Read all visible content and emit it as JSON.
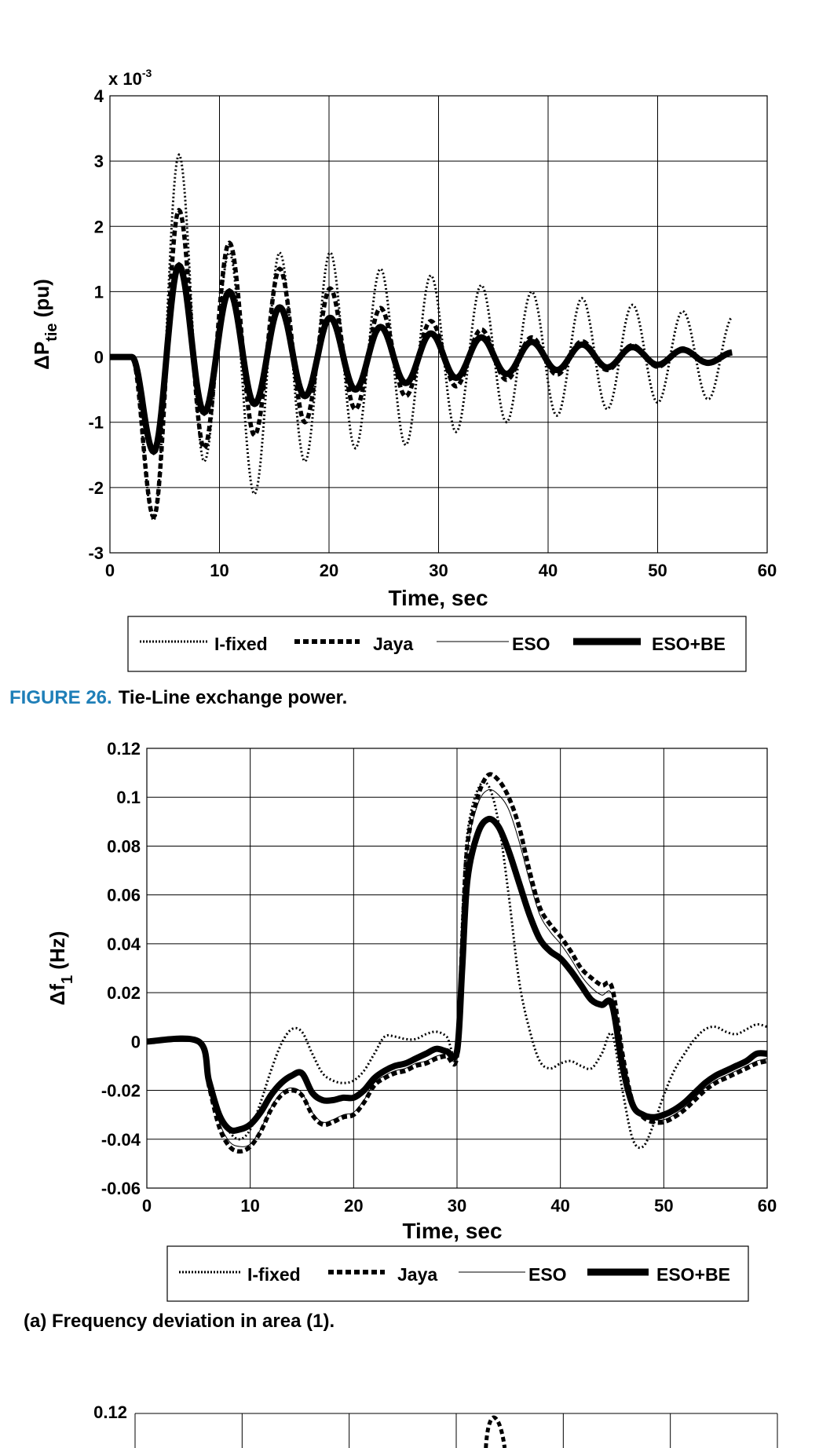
{
  "captions": {
    "fig26_label": "FIGURE 26.",
    "fig26_text": "Tie-Line exchange power.",
    "sub_a": "(a) Frequency deviation in area (1)."
  },
  "legend": {
    "entries": [
      "I-fixed",
      "Jaya",
      "ESO",
      "ESO+BE"
    ]
  },
  "colors": {
    "caption_accent": "#1f7fb8",
    "lines": "#000000"
  },
  "chart_data": [
    {
      "type": "line",
      "title": "",
      "xlabel": "Time, sec",
      "ylabel": "ΔP",
      "ylabel_sub": "tie",
      "ylabel_unit": " (pu)",
      "exponent_label": "x 10",
      "exponent_power": "-3",
      "xlim": [
        0,
        60
      ],
      "ylim": [
        -3,
        4
      ],
      "x_ticks": [
        0,
        10,
        20,
        30,
        40,
        50,
        60
      ],
      "y_ticks": [
        -3,
        -2,
        -1,
        0,
        1,
        2,
        3,
        4
      ],
      "grid": true,
      "legend_position": "below",
      "oscillation_period_s": 4.6,
      "series": [
        {
          "name": "I-fixed",
          "style": "dotted",
          "onset": 2.0,
          "first_min": [
            4.0,
            -2.5
          ],
          "peaks": [
            3.1,
            -1.6,
            1.6,
            -2.1,
            1.6,
            -1.6,
            1.6,
            -1.4,
            1.35,
            -1.35,
            1.25,
            -1.15,
            1.1,
            -1.0,
            1.0,
            -0.9,
            0.9,
            -0.8,
            0.8,
            -0.7,
            0.7,
            -0.65,
            0.62
          ]
        },
        {
          "name": "Jaya",
          "style": "dashed",
          "onset": 2.0,
          "first_min": [
            4.0,
            -2.45
          ],
          "peaks": [
            2.25,
            -1.4,
            1.75,
            -1.2,
            1.35,
            -1.0,
            1.05,
            -0.8,
            0.75,
            -0.6,
            0.55,
            -0.45,
            0.42,
            -0.35,
            0.3,
            -0.27,
            0.24,
            -0.2,
            0.18,
            -0.15,
            0.13,
            -0.1,
            0.08
          ]
        },
        {
          "name": "ESO",
          "style": "thin",
          "onset": 2.0,
          "first_min": [
            4.0,
            -1.5
          ],
          "peaks": [
            1.45,
            -0.9,
            1.05,
            -0.75,
            0.8,
            -0.62,
            0.62,
            -0.5,
            0.48,
            -0.42,
            0.38,
            -0.33,
            0.3,
            -0.26,
            0.24,
            -0.21,
            0.2,
            -0.17,
            0.16,
            -0.13,
            0.12,
            -0.1,
            0.08
          ]
        },
        {
          "name": "ESO+BE",
          "style": "thick",
          "onset": 2.0,
          "first_min": [
            4.0,
            -1.45
          ],
          "peaks": [
            1.4,
            -0.85,
            1.0,
            -0.72,
            0.76,
            -0.6,
            0.6,
            -0.5,
            0.46,
            -0.4,
            0.36,
            -0.32,
            0.3,
            -0.26,
            0.23,
            -0.2,
            0.19,
            -0.16,
            0.15,
            -0.12,
            0.11,
            -0.09,
            0.07
          ]
        }
      ]
    },
    {
      "type": "line",
      "title": "",
      "xlabel": "Time, sec",
      "ylabel": "Δf",
      "ylabel_sub": "1",
      "ylabel_unit": " (Hz)",
      "xlim": [
        0,
        60
      ],
      "ylim": [
        -0.06,
        0.12
      ],
      "x_ticks": [
        0,
        10,
        20,
        30,
        40,
        50,
        60
      ],
      "y_ticks": [
        -0.06,
        -0.04,
        -0.02,
        0,
        0.02,
        0.04,
        0.06,
        0.08,
        0.1,
        0.12
      ],
      "y_tick_labels": [
        "-0.06",
        "-0.04",
        "-0.02",
        "0",
        "0.02",
        "0.04",
        "0.06",
        "0.08",
        "0.1",
        "0.12"
      ],
      "grid": true,
      "legend_position": "below",
      "series": [
        {
          "name": "I-fixed",
          "style": "dotted",
          "x": [
            0,
            5,
            6,
            7,
            8,
            9,
            10,
            11,
            12,
            13,
            14,
            15,
            16,
            17,
            18,
            19,
            20,
            21,
            22,
            23,
            24,
            25,
            26,
            27,
            28,
            29,
            30,
            30.5,
            31,
            32,
            33,
            34,
            35,
            36,
            37,
            38,
            39,
            40,
            41,
            42,
            43,
            44,
            45,
            46,
            47,
            48,
            49,
            50,
            51,
            52,
            53,
            54,
            55,
            56,
            57,
            58,
            59,
            60
          ],
          "y": [
            0,
            0,
            -0.015,
            -0.028,
            -0.037,
            -0.04,
            -0.036,
            -0.025,
            -0.012,
            -0.001,
            0.005,
            0.004,
            -0.005,
            -0.013,
            -0.016,
            -0.017,
            -0.016,
            -0.012,
            -0.005,
            0.002,
            0.002,
            0.001,
            0.001,
            0.003,
            0.004,
            0.002,
            -0.004,
            0.05,
            0.085,
            0.103,
            0.105,
            0.09,
            0.06,
            0.025,
            0.005,
            -0.008,
            -0.011,
            -0.009,
            -0.008,
            -0.01,
            -0.011,
            -0.005,
            0.003,
            -0.02,
            -0.04,
            -0.043,
            -0.034,
            -0.022,
            -0.012,
            -0.005,
            0.001,
            0.005,
            0.006,
            0.004,
            0.003,
            0.005,
            0.007,
            0.006
          ]
        },
        {
          "name": "Jaya",
          "style": "dashed",
          "x": [
            0,
            5,
            6,
            7,
            8,
            9,
            10,
            11,
            12,
            13,
            14,
            15,
            16,
            17,
            18,
            19,
            20,
            21,
            22,
            23,
            24,
            25,
            26,
            27,
            28,
            29,
            30,
            30.5,
            31,
            32,
            33,
            34,
            35,
            36,
            37,
            38,
            39,
            40,
            41,
            42,
            43,
            44,
            45,
            46,
            47,
            48,
            49,
            50,
            51,
            52,
            53,
            54,
            55,
            56,
            57,
            58,
            59,
            60
          ],
          "y": [
            0,
            0,
            -0.018,
            -0.035,
            -0.043,
            -0.045,
            -0.043,
            -0.037,
            -0.028,
            -0.022,
            -0.02,
            -0.022,
            -0.03,
            -0.034,
            -0.033,
            -0.031,
            -0.03,
            -0.025,
            -0.018,
            -0.015,
            -0.013,
            -0.012,
            -0.01,
            -0.009,
            -0.007,
            -0.006,
            -0.006,
            0.04,
            0.08,
            0.1,
            0.109,
            0.107,
            0.1,
            0.088,
            0.07,
            0.055,
            0.048,
            0.043,
            0.037,
            0.03,
            0.026,
            0.023,
            0.022,
            -0.005,
            -0.025,
            -0.031,
            -0.033,
            -0.033,
            -0.031,
            -0.028,
            -0.024,
            -0.02,
            -0.017,
            -0.015,
            -0.013,
            -0.011,
            -0.009,
            -0.008
          ]
        },
        {
          "name": "ESO",
          "style": "thin",
          "x": [
            0,
            5,
            6,
            7,
            8,
            9,
            10,
            11,
            12,
            13,
            14,
            15,
            16,
            17,
            18,
            19,
            20,
            21,
            22,
            23,
            24,
            25,
            26,
            27,
            28,
            29,
            30,
            30.5,
            31,
            32,
            33,
            34,
            35,
            36,
            37,
            38,
            39,
            40,
            41,
            42,
            43,
            44,
            45,
            46,
            47,
            48,
            49,
            50,
            51,
            52,
            53,
            54,
            55,
            56,
            57,
            58,
            59,
            60
          ],
          "y": [
            0,
            0,
            -0.017,
            -0.033,
            -0.041,
            -0.043,
            -0.042,
            -0.036,
            -0.027,
            -0.021,
            -0.019,
            -0.021,
            -0.029,
            -0.033,
            -0.032,
            -0.03,
            -0.029,
            -0.024,
            -0.017,
            -0.014,
            -0.012,
            -0.011,
            -0.009,
            -0.008,
            -0.006,
            -0.005,
            -0.005,
            0.04,
            0.078,
            0.097,
            0.103,
            0.101,
            0.095,
            0.082,
            0.066,
            0.052,
            0.045,
            0.04,
            0.034,
            0.027,
            0.022,
            0.019,
            0.019,
            -0.006,
            -0.024,
            -0.03,
            -0.032,
            -0.032,
            -0.03,
            -0.027,
            -0.023,
            -0.019,
            -0.016,
            -0.014,
            -0.012,
            -0.01,
            -0.008,
            -0.007
          ]
        },
        {
          "name": "ESO+BE",
          "style": "thick",
          "x": [
            0,
            5,
            6,
            7,
            8,
            9,
            10,
            11,
            12,
            13,
            14,
            15,
            16,
            17,
            18,
            19,
            20,
            21,
            22,
            23,
            24,
            25,
            26,
            27,
            28,
            29,
            30,
            30.5,
            31,
            32,
            33,
            34,
            35,
            36,
            37,
            38,
            39,
            40,
            41,
            42,
            43,
            44,
            45,
            46,
            47,
            48,
            49,
            50,
            51,
            52,
            53,
            54,
            55,
            56,
            57,
            58,
            59,
            60
          ],
          "y": [
            0,
            0,
            -0.016,
            -0.03,
            -0.036,
            -0.036,
            -0.034,
            -0.029,
            -0.022,
            -0.017,
            -0.014,
            -0.013,
            -0.021,
            -0.024,
            -0.024,
            -0.023,
            -0.023,
            -0.02,
            -0.015,
            -0.012,
            -0.01,
            -0.009,
            -0.007,
            -0.005,
            -0.003,
            -0.004,
            -0.004,
            0.03,
            0.066,
            0.085,
            0.091,
            0.088,
            0.078,
            0.065,
            0.052,
            0.042,
            0.037,
            0.034,
            0.029,
            0.023,
            0.017,
            0.015,
            0.015,
            -0.01,
            -0.026,
            -0.03,
            -0.031,
            -0.03,
            -0.028,
            -0.025,
            -0.021,
            -0.017,
            -0.014,
            -0.012,
            -0.01,
            -0.008,
            -0.005,
            -0.005
          ]
        }
      ]
    },
    {
      "type": "line",
      "y_ticks_visible": [
        0.12
      ],
      "y_tick_labels": [
        "0.12"
      ],
      "series_peak": {
        "x": 33.5,
        "y": 0.118
      }
    }
  ]
}
